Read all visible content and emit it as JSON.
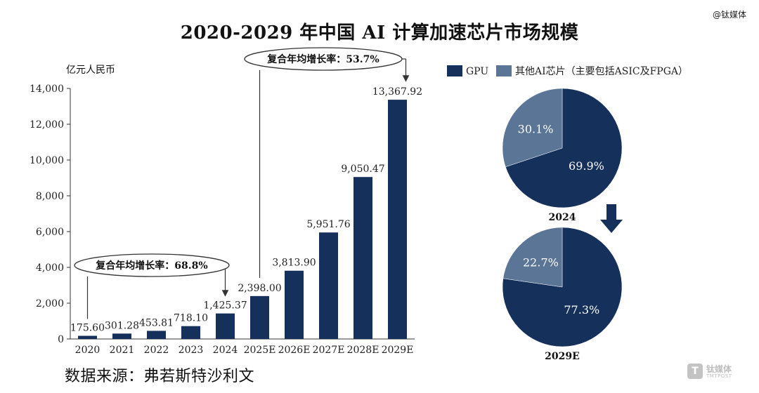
{
  "watermark_top": "@钛媒体",
  "title": "2020-2029 年中国 AI 计算加速芯片市场规模",
  "unit": "亿元人民币",
  "source": "数据来源：弗若斯特沙利文",
  "logo": {
    "mark": "T",
    "name": "钛媒体",
    "sub": "TMTPOST"
  },
  "colors": {
    "gpu": "#16305c",
    "other": "#5b7596",
    "axis": "#333333"
  },
  "chart_data": [
    {
      "type": "bar",
      "title": "",
      "ylabel": "亿元人民币",
      "categories": [
        "2020",
        "2021",
        "2022",
        "2023",
        "2024",
        "2025E",
        "2026E",
        "2027E",
        "2028E",
        "2029E"
      ],
      "values": [
        175.6,
        301.28,
        453.81,
        718.1,
        1425.37,
        2398.0,
        3813.9,
        5951.76,
        9050.47,
        13367.92
      ],
      "value_labels": [
        "175.60",
        "301.28",
        "453.81",
        "718.10",
        "1,425.37",
        "2,398.00",
        "3,813.90",
        "5,951.76",
        "9,050.47",
        "13,367.92"
      ],
      "ylim": [
        0,
        14000
      ],
      "yticks": [
        0,
        2000,
        4000,
        6000,
        8000,
        10000,
        12000,
        14000
      ],
      "ytick_labels": [
        "0",
        "2,000",
        "4,000",
        "6,000",
        "8,000",
        "10,000",
        "12,000",
        "14,000"
      ],
      "grid": false,
      "annotations": [
        {
          "text": "复合年均增长率：68.8%",
          "from": "2020",
          "to": "2024"
        },
        {
          "text": "复合年均增长率：53.7%",
          "from": "2025E",
          "to": "2029E"
        }
      ]
    },
    {
      "type": "pie",
      "legend": [
        "GPU",
        "其他AI芯片（主要包括ASIC及FPGA）"
      ],
      "legend_position": "top",
      "pies": [
        {
          "label": "2024",
          "slices": [
            {
              "name": "GPU",
              "value": 69.9,
              "label": "69.9%"
            },
            {
              "name": "其他AI芯片（主要包括ASIC及FPGA）",
              "value": 30.1,
              "label": "30.1%"
            }
          ]
        },
        {
          "label": "2029E",
          "slices": [
            {
              "name": "GPU",
              "value": 77.3,
              "label": "77.3%"
            },
            {
              "name": "其他AI芯片（主要包括ASIC及FPGA）",
              "value": 22.7,
              "label": "22.7%"
            }
          ]
        }
      ]
    }
  ]
}
